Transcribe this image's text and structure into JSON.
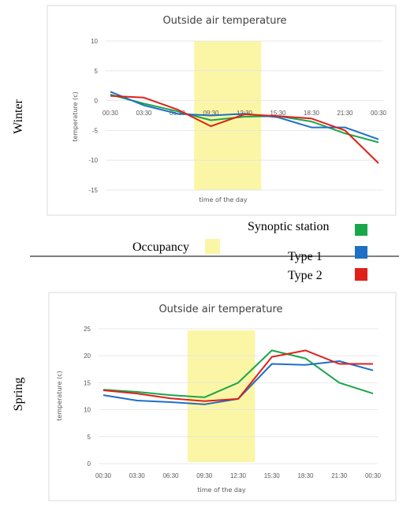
{
  "season_labels": [
    "Winter",
    "Spring"
  ],
  "legend": {
    "occupancy": "Occupancy",
    "synoptic": "Synoptic station",
    "type1": "Type 1",
    "type2": "Type 2"
  },
  "colors": {
    "synoptic": "#1aa64a",
    "type1": "#1f6fc5",
    "type2": "#e0201a",
    "occupancy": "#fbf6a6"
  },
  "chart_data": [
    {
      "type": "line",
      "title": "Outside air temperature",
      "xlabel": "time of the day",
      "ylabel": "temperature (c)",
      "categories": [
        "00:30",
        "03:30",
        "06:30",
        "09:30",
        "12:30",
        "15:30",
        "18:30",
        "21:30",
        "00:30"
      ],
      "x_tick_labels": [
        "00:30",
        "03:30",
        "06:30",
        "09:30",
        "12:30",
        "15:30",
        "18:30",
        "21:30",
        "00:30"
      ],
      "ylim": [
        -15,
        10
      ],
      "y_ticks": [
        10,
        5,
        0,
        -5,
        -10,
        -15
      ],
      "occupancy_span": [
        "08:00",
        "14:00"
      ],
      "series": [
        {
          "name": "Synoptic station",
          "values": [
            1.0,
            -0.5,
            -1.8,
            -3.3,
            -2.7,
            -2.6,
            -3.5,
            -5.5,
            -7.0
          ]
        },
        {
          "name": "Type 1",
          "values": [
            1.5,
            -0.8,
            -2.2,
            -2.5,
            -2.2,
            -2.8,
            -4.5,
            -4.5,
            -6.5
          ]
        },
        {
          "name": "Type 2",
          "values": [
            0.8,
            0.5,
            -1.5,
            -4.3,
            -2.3,
            -2.6,
            -3.0,
            -5.0,
            -10.5
          ]
        }
      ]
    },
    {
      "type": "line",
      "title": "Outside air temperature",
      "xlabel": "time of the day",
      "ylabel": "temperature (c)",
      "categories": [
        "00:30",
        "03:30",
        "06:30",
        "09:30",
        "12:30",
        "15:30",
        "18:30",
        "21:30",
        "00:30"
      ],
      "x_tick_labels": [
        "00:30",
        "03:30",
        "06:30",
        "09:30",
        "12:30",
        "15:30",
        "18:30",
        "21:30",
        "00:30"
      ],
      "ylim": [
        0,
        25
      ],
      "y_ticks": [
        25,
        20,
        15,
        10,
        5,
        0
      ],
      "occupancy_span": [
        "08:00",
        "14:00"
      ],
      "series": [
        {
          "name": "Synoptic station",
          "values": [
            13.7,
            13.3,
            12.7,
            12.3,
            15.0,
            21.0,
            19.5,
            15.0,
            13.0
          ]
        },
        {
          "name": "Type 1",
          "values": [
            12.7,
            11.7,
            11.4,
            11.0,
            12.0,
            18.5,
            18.3,
            19.0,
            17.3
          ]
        },
        {
          "name": "Type 2",
          "values": [
            13.6,
            13.0,
            12.1,
            11.6,
            12.0,
            19.8,
            21.0,
            18.5,
            18.5
          ]
        }
      ]
    }
  ]
}
